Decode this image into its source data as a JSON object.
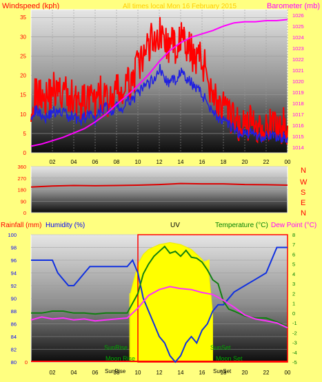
{
  "colors": {
    "background": "#ffff80",
    "wind_speed": "#ff0000",
    "wind_avg": "#2020e0",
    "barometer": "#ff00ff",
    "direction": "#e00000",
    "humidity": "#1030e0",
    "temperature": "#108010",
    "dew_point": "#ff30ff",
    "sun": "#ffff00",
    "red_label": "#ff0000",
    "blue_label": "#0000ff",
    "green_label": "#008000"
  },
  "header": {
    "windspeed_label": "Windspeed (kph)",
    "barometer_label": "Barometer (mb)",
    "date_title": "All times local  Mon 16 February 2015"
  },
  "direction_panel": {
    "compass": [
      "N",
      "W",
      "S",
      "E",
      "N"
    ]
  },
  "bottom_header": {
    "rainfall": "Rainfall (mm)",
    "humidity": "Humidity (%)",
    "uv": "UV",
    "temperature": "Temperature (°C)",
    "dew_point": "Dew Point (°C)"
  },
  "annotations": {
    "sunrise": "SunRise",
    "sunset": "SunSet",
    "moonset": "Moon Set",
    "moonrise": "Moon Rise",
    "sunrise_axis": "SunRise",
    "sunset_axis": "SunSet"
  },
  "chart_data": [
    {
      "type": "line",
      "name": "wind-barometer",
      "x_ticks": [
        "02",
        "04",
        "06",
        "08",
        "10",
        "12",
        "14",
        "16",
        "18",
        "20",
        "22",
        "00"
      ],
      "ylabel_left": "Windspeed (kph)",
      "ylabel_right": "Barometer (mb)",
      "y_left_ticks": [
        0,
        5,
        10,
        15,
        20,
        25,
        30,
        35
      ],
      "y_left_range": [
        0,
        37
      ],
      "y_right_ticks": [
        1014,
        1015,
        1016,
        1017,
        1018,
        1019,
        1020,
        1021,
        1022,
        1023,
        1024,
        1025,
        1026
      ],
      "y_right_range": [
        1013.5,
        1026.5
      ],
      "wind_gust_kph": [
        [
          0,
          13
        ],
        [
          0.5,
          15
        ],
        [
          1,
          16
        ],
        [
          1.5,
          14
        ],
        [
          2,
          17
        ],
        [
          2.5,
          15
        ],
        [
          3,
          16
        ],
        [
          3.5,
          14
        ],
        [
          4,
          15
        ],
        [
          4.5,
          12
        ],
        [
          5,
          13
        ],
        [
          5.5,
          14
        ],
        [
          6,
          12
        ],
        [
          6.5,
          15
        ],
        [
          7,
          14
        ],
        [
          7.5,
          13
        ],
        [
          8,
          16
        ],
        [
          8.5,
          15
        ],
        [
          9,
          17
        ],
        [
          9.5,
          19
        ],
        [
          10,
          22
        ],
        [
          10.5,
          24
        ],
        [
          11,
          28
        ],
        [
          11.5,
          30
        ],
        [
          12,
          31
        ],
        [
          12.5,
          29
        ],
        [
          13,
          27
        ],
        [
          13.5,
          28
        ],
        [
          14,
          30
        ],
        [
          14.5,
          27
        ],
        [
          15,
          26
        ],
        [
          15.5,
          25
        ],
        [
          16,
          24
        ],
        [
          16.5,
          20
        ],
        [
          17,
          16
        ],
        [
          17.5,
          13
        ],
        [
          18,
          11
        ],
        [
          18.5,
          9
        ],
        [
          19,
          8
        ],
        [
          19.5,
          7
        ],
        [
          20,
          7
        ],
        [
          20.5,
          8
        ],
        [
          21,
          7
        ],
        [
          21.5,
          7
        ],
        [
          22,
          8
        ],
        [
          22.5,
          6
        ],
        [
          23,
          7
        ],
        [
          23.5,
          7
        ],
        [
          24,
          7
        ]
      ],
      "wind_avg_kph": [
        [
          0,
          10
        ],
        [
          0.5,
          11
        ],
        [
          1,
          10
        ],
        [
          1.5,
          9
        ],
        [
          2,
          11
        ],
        [
          2.5,
          10
        ],
        [
          3,
          11
        ],
        [
          3.5,
          9
        ],
        [
          4,
          10
        ],
        [
          4.5,
          8
        ],
        [
          5,
          9
        ],
        [
          5.5,
          10
        ],
        [
          6,
          8
        ],
        [
          6.5,
          11
        ],
        [
          7,
          12
        ],
        [
          7.5,
          10
        ],
        [
          8,
          12
        ],
        [
          8.5,
          11
        ],
        [
          9,
          13
        ],
        [
          9.5,
          14
        ],
        [
          10,
          15
        ],
        [
          10.5,
          17
        ],
        [
          11,
          18
        ],
        [
          11.5,
          19
        ],
        [
          12,
          22
        ],
        [
          12.5,
          19
        ],
        [
          13,
          18
        ],
        [
          13.5,
          19
        ],
        [
          14,
          21
        ],
        [
          14.5,
          19
        ],
        [
          15,
          18
        ],
        [
          15.5,
          17
        ],
        [
          16,
          15
        ],
        [
          16.5,
          13
        ],
        [
          17,
          11
        ],
        [
          17.5,
          9
        ],
        [
          18,
          8
        ],
        [
          18.5,
          7
        ],
        [
          19,
          6
        ],
        [
          19.5,
          5
        ],
        [
          20,
          5
        ],
        [
          20.5,
          5
        ],
        [
          21,
          5
        ],
        [
          21.5,
          4
        ],
        [
          22,
          5
        ],
        [
          22.5,
          4
        ],
        [
          23,
          4
        ],
        [
          23.5,
          4
        ],
        [
          24,
          4
        ]
      ],
      "barometer_mb": [
        [
          0,
          1014.1
        ],
        [
          1,
          1014.3
        ],
        [
          2,
          1014.6
        ],
        [
          3,
          1014.9
        ],
        [
          4,
          1015.3
        ],
        [
          5,
          1015.7
        ],
        [
          6,
          1016.3
        ],
        [
          7,
          1017.0
        ],
        [
          8,
          1017.9
        ],
        [
          9,
          1018.7
        ],
        [
          10,
          1019.6
        ],
        [
          11,
          1020.6
        ],
        [
          12,
          1021.8
        ],
        [
          13,
          1022.8
        ],
        [
          14,
          1023.5
        ],
        [
          15,
          1024.0
        ],
        [
          16,
          1024.3
        ],
        [
          17,
          1024.6
        ],
        [
          18,
          1025.0
        ],
        [
          19,
          1025.3
        ],
        [
          20,
          1025.4
        ],
        [
          21,
          1025.4
        ],
        [
          22,
          1025.5
        ],
        [
          23,
          1025.5
        ],
        [
          24,
          1025.6
        ]
      ]
    },
    {
      "type": "line",
      "name": "wind-direction",
      "y_ticks": [
        0,
        90,
        180,
        270,
        360
      ],
      "y_range": [
        0,
        360
      ],
      "direction_deg": [
        [
          0,
          200
        ],
        [
          2,
          208
        ],
        [
          4,
          212
        ],
        [
          6,
          210
        ],
        [
          8,
          212
        ],
        [
          10,
          215
        ],
        [
          12,
          220
        ],
        [
          14,
          228
        ],
        [
          16,
          225
        ],
        [
          18,
          225
        ],
        [
          20,
          220
        ],
        [
          22,
          218
        ],
        [
          24,
          215
        ]
      ]
    },
    {
      "type": "line",
      "name": "rain-humidity-uv-temperature",
      "y_humidity_ticks": [
        80,
        82,
        84,
        86,
        88,
        90,
        92,
        94,
        96,
        98,
        100
      ],
      "y_humidity_range": [
        80,
        100
      ],
      "y_temp_ticks": [
        -5,
        -4,
        -3,
        -2,
        -1,
        0,
        1,
        2,
        3,
        4,
        5,
        6,
        7,
        8
      ],
      "y_temp_range": [
        -5,
        8
      ],
      "rainfall_mm": [
        [
          0,
          0
        ],
        [
          24,
          0
        ]
      ],
      "humidity_pct": [
        [
          0,
          96
        ],
        [
          1,
          96
        ],
        [
          2,
          96
        ],
        [
          2.5,
          94
        ],
        [
          3,
          93
        ],
        [
          3.5,
          92
        ],
        [
          4,
          92
        ],
        [
          4.5,
          93
        ],
        [
          5,
          94
        ],
        [
          5.5,
          95
        ],
        [
          6,
          95
        ],
        [
          7,
          95
        ],
        [
          8,
          95
        ],
        [
          9,
          95
        ],
        [
          9.5,
          96
        ],
        [
          10,
          94
        ],
        [
          10.5,
          90
        ],
        [
          11,
          88
        ],
        [
          11.5,
          86
        ],
        [
          12,
          84
        ],
        [
          12.5,
          83
        ],
        [
          13,
          81
        ],
        [
          13.5,
          80
        ],
        [
          14,
          81
        ],
        [
          14.5,
          83
        ],
        [
          15,
          84
        ],
        [
          15.5,
          83
        ],
        [
          16,
          85
        ],
        [
          16.5,
          86
        ],
        [
          17,
          88
        ],
        [
          17.5,
          89
        ],
        [
          18,
          89
        ],
        [
          19,
          91
        ],
        [
          20,
          92
        ],
        [
          21,
          93
        ],
        [
          22,
          94
        ],
        [
          23,
          98
        ],
        [
          24,
          98
        ]
      ],
      "temperature_c": [
        [
          0,
          0
        ],
        [
          1,
          0
        ],
        [
          2,
          0.2
        ],
        [
          3,
          0.2
        ],
        [
          4,
          0
        ],
        [
          5,
          0
        ],
        [
          6,
          -0.1
        ],
        [
          7,
          0
        ],
        [
          8,
          0
        ],
        [
          9,
          0
        ],
        [
          10,
          2
        ],
        [
          10.5,
          4
        ],
        [
          11,
          5
        ],
        [
          11.5,
          5.8
        ],
        [
          12,
          6.3
        ],
        [
          12.5,
          6.8
        ],
        [
          13,
          6.1
        ],
        [
          13.5,
          6.3
        ],
        [
          14,
          5.8
        ],
        [
          14.5,
          6.4
        ],
        [
          15,
          5.7
        ],
        [
          15.5,
          5.6
        ],
        [
          16,
          5.2
        ],
        [
          16.5,
          4.4
        ],
        [
          17,
          3.4
        ],
        [
          17.5,
          3
        ],
        [
          18,
          1.2
        ],
        [
          18.5,
          0.4
        ],
        [
          19,
          0.2
        ],
        [
          20,
          -0.3
        ],
        [
          21,
          -0.5
        ],
        [
          22,
          -0.5
        ],
        [
          23,
          -0.9
        ],
        [
          24,
          -1.4
        ]
      ],
      "dew_point_c": [
        [
          0,
          -0.7
        ],
        [
          1,
          -0.4
        ],
        [
          2,
          -0.6
        ],
        [
          3,
          -0.5
        ],
        [
          4,
          -0.7
        ],
        [
          5,
          -0.6
        ],
        [
          6,
          -0.8
        ],
        [
          7,
          -0.7
        ],
        [
          8,
          -0.6
        ],
        [
          9,
          -0.5
        ],
        [
          10,
          0.5
        ],
        [
          11,
          1.8
        ],
        [
          12,
          2.4
        ],
        [
          13,
          2.7
        ],
        [
          14,
          2.5
        ],
        [
          15,
          2.4
        ],
        [
          16,
          2.1
        ],
        [
          17,
          1.9
        ],
        [
          18,
          1.3
        ],
        [
          19,
          0.6
        ],
        [
          20,
          -0.2
        ],
        [
          21,
          -0.6
        ],
        [
          22,
          -0.8
        ],
        [
          23,
          -1.0
        ],
        [
          24,
          -1.5
        ]
      ],
      "uv_index": [
        [
          0,
          0
        ],
        [
          9,
          0
        ],
        [
          9.3,
          2
        ],
        [
          10,
          5
        ],
        [
          10.5,
          6
        ],
        [
          11,
          6.5
        ],
        [
          12,
          7
        ],
        [
          13,
          7.2
        ],
        [
          14,
          7
        ],
        [
          15,
          6.5
        ],
        [
          16,
          5.5
        ],
        [
          16.6,
          4.5
        ],
        [
          17,
          0
        ],
        [
          24,
          0
        ]
      ],
      "sunrise_hour": 9.2,
      "sunset_hour": 16.7,
      "moonset_hour": 16.9,
      "moonrise_hour": 9.8
    }
  ]
}
